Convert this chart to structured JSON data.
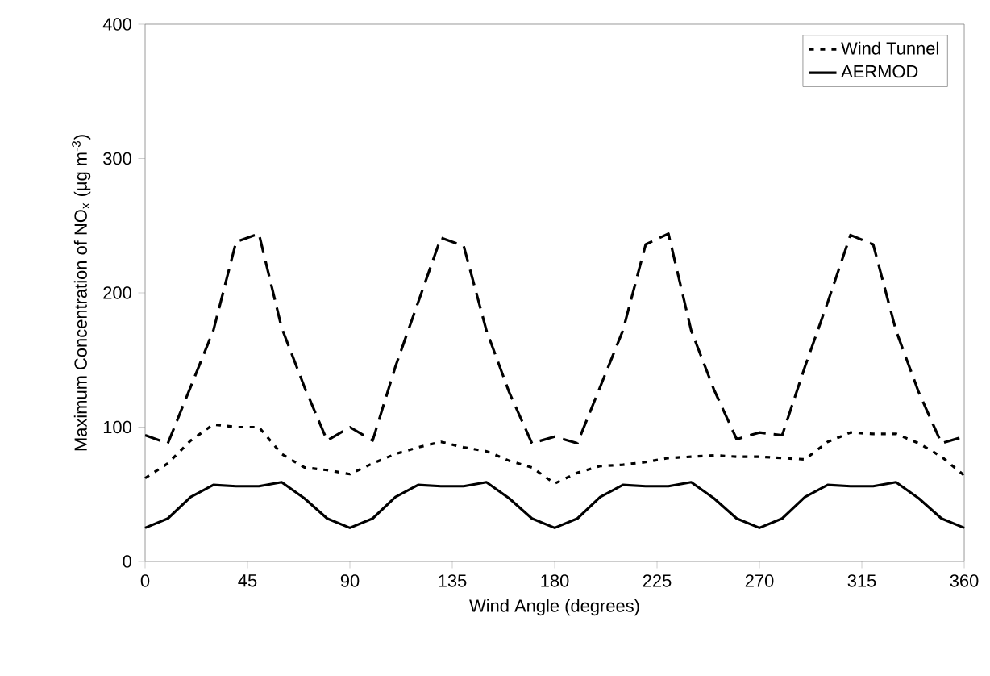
{
  "chart_data": {
    "type": "line",
    "xlabel": "Wind Angle (degrees)",
    "ylabel": "Maximum Concentration of NO$_{x}$ (µg m$^{-3}$)",
    "x": [
      0,
      10,
      20,
      30,
      40,
      50,
      60,
      70,
      80,
      90,
      100,
      110,
      120,
      130,
      140,
      150,
      160,
      170,
      180,
      190,
      200,
      210,
      220,
      230,
      240,
      250,
      260,
      270,
      280,
      290,
      300,
      310,
      320,
      330,
      340,
      350,
      360
    ],
    "series": [
      {
        "color": "#000000",
        "line_style": "dashed",
        "values": [
          94,
          88,
          130,
          172,
          238,
          244,
          174,
          130,
          90,
          100,
          90,
          145,
          193,
          241,
          235,
          172,
          126,
          88,
          93,
          88,
          130,
          172,
          236,
          244,
          172,
          128,
          91,
          96,
          94,
          145,
          193,
          243,
          236,
          172,
          126,
          88,
          93
        ]
      },
      {
        "name": "Wind Tunnel",
        "color": "#000000",
        "line_style": "dotted",
        "values": [
          62,
          73,
          90,
          102,
          100,
          100,
          80,
          70,
          68,
          65,
          73,
          80,
          85,
          89,
          85,
          82,
          75,
          70,
          58,
          66,
          71,
          72,
          74,
          77,
          78,
          79,
          78,
          78,
          77,
          76,
          89,
          96,
          95,
          95,
          88,
          78,
          64
        ]
      },
      {
        "name": "AERMOD",
        "color": "#000000",
        "line_style": "solid",
        "values": [
          25,
          32,
          48,
          57,
          56,
          56,
          59,
          47,
          32,
          25,
          32,
          48,
          57,
          56,
          56,
          59,
          47,
          32,
          25,
          32,
          48,
          57,
          56,
          56,
          59,
          47,
          32,
          25,
          32,
          48,
          57,
          56,
          56,
          59,
          47,
          32,
          25
        ]
      }
    ],
    "xlim": [
      0,
      360
    ],
    "ylim": [
      0,
      400
    ],
    "xticks": [
      0,
      45,
      90,
      135,
      180,
      225,
      270,
      315,
      360
    ],
    "yticks": [
      0,
      100,
      200,
      300,
      400
    ],
    "grid": false,
    "legend": "top right",
    "marker": "none"
  }
}
